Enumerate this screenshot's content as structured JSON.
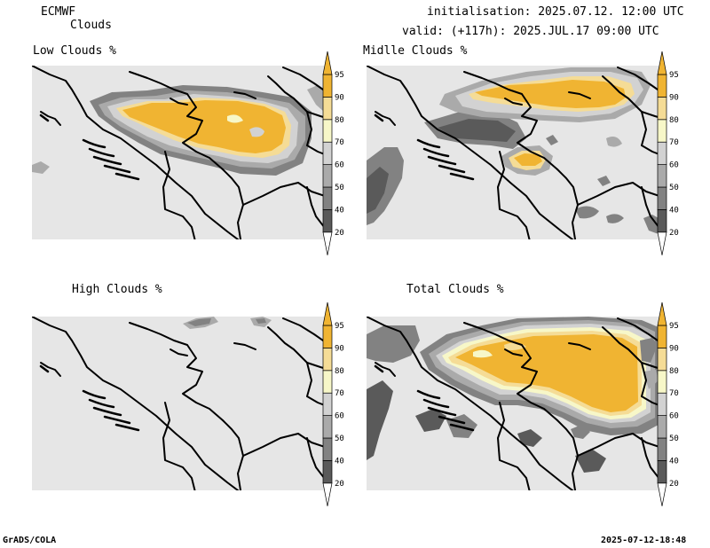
{
  "header": {
    "model": "ECMWF",
    "product": "Clouds",
    "init": "initialisation: 2025.07.12. 12:00 UTC",
    "valid": "valid: (+117h): 2025.JUL.17 09:00 UTC"
  },
  "panels": [
    {
      "id": "low",
      "title": "Low Clouds %"
    },
    {
      "id": "mid",
      "title": "Midlle Clouds %"
    },
    {
      "id": "high",
      "title": "High Clouds %"
    },
    {
      "id": "total",
      "title": "Total Clouds %"
    }
  ],
  "legend": {
    "levels": [
      "20",
      "40",
      "50",
      "60",
      "70",
      "80",
      "90",
      "95"
    ],
    "colors": [
      "#ffffff",
      "#5a5a5a",
      "#828282",
      "#aaaaaa",
      "#d2d2d2",
      "#f7f7c8",
      "#f5dc96",
      "#f0b432",
      "#f0b432"
    ]
  },
  "colors": {
    "background": "#e6e6e6",
    "cloud_orange": "#f0b432",
    "cloud_light_yellow": "#f7f7c8",
    "cloud_tan": "#f5dc96",
    "border": "#000000"
  },
  "footer": {
    "left": "GrADS/COLA",
    "right": "2025-07-12-18:48"
  }
}
